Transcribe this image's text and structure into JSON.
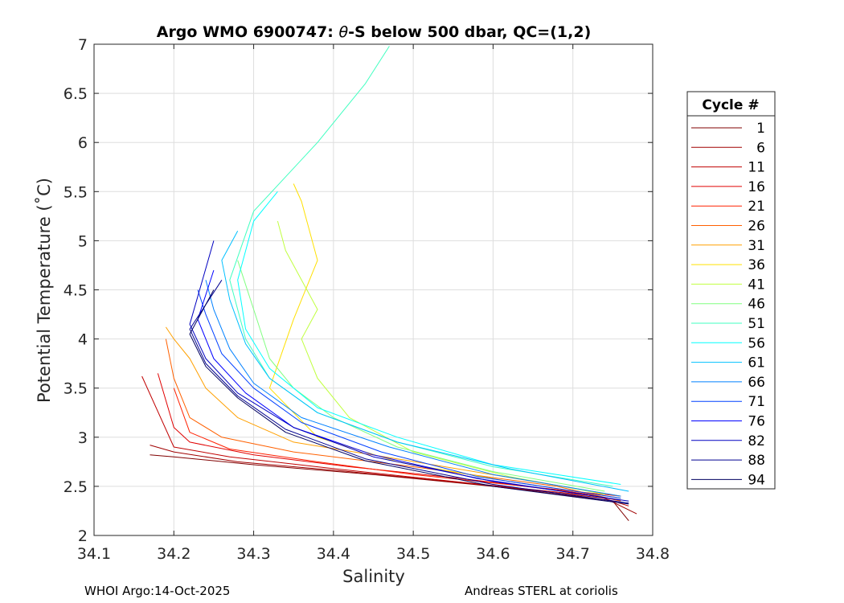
{
  "chart_data": {
    "type": "line",
    "title_prefix": "Argo WMO 6900747: ",
    "title_theta": "θ",
    "title_suffix": "-S below 500 dbar,  QC=(1,2)",
    "xlabel": "Salinity",
    "ylabel": "Potential Temperature (˚C)",
    "xlim": [
      34.1,
      34.8
    ],
    "ylim": [
      2,
      7
    ],
    "xticks": [
      "34.1",
      "34.2",
      "34.3",
      "34.4",
      "34.5",
      "34.6",
      "34.7",
      "34.8"
    ],
    "yticks": [
      "2",
      "2.5",
      "3",
      "3.5",
      "4",
      "4.5",
      "5",
      "5.5",
      "6",
      "6.5",
      "7"
    ],
    "grid": true,
    "legend_title": "Cycle #",
    "legend_position": "outside-right",
    "series": [
      {
        "name": "1",
        "color": "#800000",
        "s": [
          34.77,
          34.75,
          34.6,
          34.45,
          34.3,
          34.2,
          34.17
        ],
        "t": [
          2.15,
          2.35,
          2.5,
          2.62,
          2.72,
          2.8,
          2.82
        ]
      },
      {
        "name": "6",
        "color": "#a00000",
        "s": [
          34.78,
          34.74,
          34.58,
          34.42,
          34.28,
          34.2,
          34.17
        ],
        "t": [
          2.22,
          2.38,
          2.52,
          2.65,
          2.75,
          2.85,
          2.92
        ]
      },
      {
        "name": "11",
        "color": "#c00000",
        "s": [
          34.77,
          34.73,
          34.55,
          34.4,
          34.27,
          34.2,
          34.16
        ],
        "t": [
          2.3,
          2.4,
          2.55,
          2.68,
          2.8,
          2.9,
          3.62
        ]
      },
      {
        "name": "16",
        "color": "#e00000",
        "s": [
          34.76,
          34.72,
          34.56,
          34.42,
          34.3,
          34.22,
          34.2,
          34.18
        ],
        "t": [
          2.35,
          2.42,
          2.58,
          2.7,
          2.82,
          2.95,
          3.1,
          3.65
        ]
      },
      {
        "name": "21",
        "color": "#ff2000",
        "s": [
          34.76,
          34.7,
          34.5,
          34.38,
          34.27,
          34.22,
          34.2
        ],
        "t": [
          2.4,
          2.45,
          2.62,
          2.75,
          2.88,
          3.05,
          3.5
        ]
      },
      {
        "name": "26",
        "color": "#ff6000",
        "s": [
          34.76,
          34.68,
          34.5,
          34.35,
          34.26,
          34.22,
          34.2,
          34.19
        ],
        "t": [
          2.35,
          2.5,
          2.7,
          2.85,
          3.0,
          3.2,
          3.6,
          4.0
        ]
      },
      {
        "name": "31",
        "color": "#ffa000",
        "s": [
          34.76,
          34.65,
          34.48,
          34.35,
          34.28,
          34.24,
          34.22,
          34.2,
          34.19
        ],
        "t": [
          2.4,
          2.55,
          2.78,
          2.95,
          3.2,
          3.5,
          3.8,
          4.0,
          4.12
        ]
      },
      {
        "name": "36",
        "color": "#ffe000",
        "s": [
          34.76,
          34.62,
          34.48,
          34.38,
          34.32,
          34.35,
          34.38,
          34.36,
          34.35
        ],
        "t": [
          2.38,
          2.55,
          2.75,
          3.0,
          3.5,
          4.2,
          4.8,
          5.4,
          5.58
        ]
      },
      {
        "name": "41",
        "color": "#c0ff40",
        "s": [
          34.74,
          34.62,
          34.5,
          34.42,
          34.38,
          34.36,
          34.38,
          34.34,
          34.33
        ],
        "t": [
          2.42,
          2.6,
          2.85,
          3.2,
          3.6,
          4.0,
          4.3,
          4.9,
          5.2
        ]
      },
      {
        "name": "46",
        "color": "#80ff80",
        "s": [
          34.74,
          34.6,
          34.48,
          34.4,
          34.35,
          34.32,
          34.3,
          34.28
        ],
        "t": [
          2.45,
          2.65,
          2.9,
          3.2,
          3.5,
          3.8,
          4.3,
          4.8
        ]
      },
      {
        "name": "51",
        "color": "#40ffc0",
        "s": [
          34.75,
          34.6,
          34.48,
          34.38,
          34.32,
          34.29,
          34.27,
          34.3,
          34.38,
          34.44,
          34.47
        ],
        "t": [
          2.5,
          2.7,
          2.95,
          3.25,
          3.6,
          4.0,
          4.6,
          5.3,
          6.0,
          6.6,
          6.98
        ]
      },
      {
        "name": "56",
        "color": "#00ffff",
        "s": [
          34.76,
          34.6,
          34.48,
          34.38,
          34.32,
          34.29,
          34.28,
          34.3,
          34.33
        ],
        "t": [
          2.52,
          2.72,
          3.0,
          3.3,
          3.7,
          4.1,
          4.6,
          5.2,
          5.5
        ]
      },
      {
        "name": "61",
        "color": "#00c0ff",
        "s": [
          34.77,
          34.62,
          34.48,
          34.38,
          34.32,
          34.29,
          34.27,
          34.26,
          34.28
        ],
        "t": [
          2.45,
          2.68,
          2.95,
          3.25,
          3.6,
          3.95,
          4.4,
          4.8,
          5.1
        ]
      },
      {
        "name": "66",
        "color": "#0080ff",
        "s": [
          34.76,
          34.6,
          34.47,
          34.36,
          34.3,
          34.27,
          34.25,
          34.24
        ],
        "t": [
          2.4,
          2.62,
          2.9,
          3.2,
          3.55,
          3.9,
          4.3,
          4.6
        ]
      },
      {
        "name": "71",
        "color": "#0040ff",
        "s": [
          34.76,
          34.58,
          34.46,
          34.36,
          34.3,
          34.26,
          34.24,
          34.23
        ],
        "t": [
          2.38,
          2.6,
          2.85,
          3.15,
          3.5,
          3.85,
          4.25,
          4.5
        ]
      },
      {
        "name": "76",
        "color": "#0000ff",
        "s": [
          34.76,
          34.58,
          34.45,
          34.35,
          34.29,
          34.25,
          34.23,
          34.25
        ],
        "t": [
          2.36,
          2.58,
          2.82,
          3.1,
          3.45,
          3.8,
          4.2,
          4.7
        ]
      },
      {
        "name": "82",
        "color": "#0000c0",
        "s": [
          34.77,
          34.6,
          34.45,
          34.35,
          34.28,
          34.24,
          34.22,
          34.25
        ],
        "t": [
          2.35,
          2.55,
          2.8,
          3.1,
          3.45,
          3.8,
          4.15,
          5.0
        ]
      },
      {
        "name": "88",
        "color": "#000090",
        "s": [
          34.77,
          34.6,
          34.44,
          34.34,
          34.28,
          34.24,
          34.22,
          34.26
        ],
        "t": [
          2.33,
          2.52,
          2.78,
          3.08,
          3.42,
          3.75,
          4.1,
          4.6
        ]
      },
      {
        "name": "94",
        "color": "#000060",
        "s": [
          34.77,
          34.6,
          34.44,
          34.34,
          34.28,
          34.24,
          34.22,
          34.25
        ],
        "t": [
          2.32,
          2.5,
          2.76,
          3.05,
          3.4,
          3.72,
          4.05,
          4.5
        ]
      }
    ]
  },
  "footer": {
    "left": "WHOI Argo:14-Oct-2025",
    "right": "Andreas STERL at coriolis"
  }
}
